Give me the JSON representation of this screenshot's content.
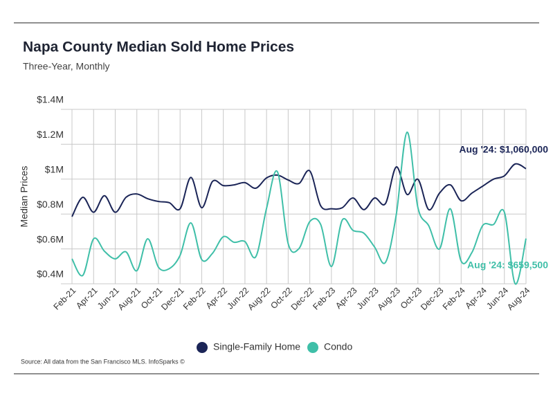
{
  "chart_data": {
    "type": "line",
    "title": "Napa County Median Sold Home Prices",
    "subtitle": "Three-Year, Monthly",
    "y_label": "Median Prices",
    "source": "Source:  All data from the San Francisco MLS. InfoSparks ©",
    "categories": [
      "Feb-21",
      null,
      "Apr-21",
      null,
      "Jun-21",
      null,
      "Aug-21",
      null,
      "Oct-21",
      null,
      "Dec-21",
      null,
      "Feb-22",
      null,
      "Apr-22",
      null,
      "Jun-22",
      null,
      "Aug-22",
      null,
      "Oct-22",
      null,
      "Dec-22",
      null,
      "Feb-23",
      null,
      "Apr-23",
      null,
      "Jun-23",
      null,
      "Aug-23",
      null,
      "Oct-23",
      null,
      "Dec-23",
      null,
      "Feb-24",
      null,
      "Apr-24",
      null,
      "Jun-24",
      null,
      "Aug-24"
    ],
    "series": [
      {
        "name": "Single-Family Home",
        "color": "#1b2557",
        "values": [
          785000,
          896000,
          810000,
          905000,
          810000,
          896000,
          915000,
          888000,
          872000,
          865000,
          830000,
          1010000,
          836000,
          987000,
          963000,
          967000,
          980000,
          948000,
          1007000,
          1023000,
          995000,
          975000,
          1047000,
          848000,
          830000,
          836000,
          892000,
          825000,
          892000,
          860000,
          1070000,
          912000,
          999000,
          825000,
          920000,
          967000,
          876000,
          920000,
          960000,
          1000000,
          1019000,
          1087000,
          1060000
        ],
        "annotation": "Aug '24: $1,060,000"
      },
      {
        "name": "Condo",
        "color": "#3fbfa8",
        "values": [
          543000,
          448000,
          658000,
          587000,
          543000,
          583000,
          475000,
          658000,
          495000,
          487000,
          563000,
          749000,
          539000,
          575000,
          670000,
          638000,
          642000,
          555000,
          833000,
          1043000,
          630000,
          602000,
          757000,
          741000,
          499000,
          765000,
          706000,
          690000,
          610000,
          523000,
          797000,
          1269000,
          837000,
          733000,
          600000,
          830000,
          530000,
          580000,
          735000,
          740000,
          810000,
          400000,
          659500
        ],
        "annotation": "Aug '24: $659,500"
      }
    ],
    "ylim": [
      400000,
      1400000
    ],
    "yticks": [
      {
        "value": 400000,
        "label": "$0.4M"
      },
      {
        "value": 600000,
        "label": "$0.6M"
      },
      {
        "value": 800000,
        "label": "$0.8M"
      },
      {
        "value": 1000000,
        "label": "$1M"
      },
      {
        "value": 1200000,
        "label": "$1.2M"
      },
      {
        "value": 1400000,
        "label": "$1.4M"
      }
    ],
    "grid": true
  }
}
